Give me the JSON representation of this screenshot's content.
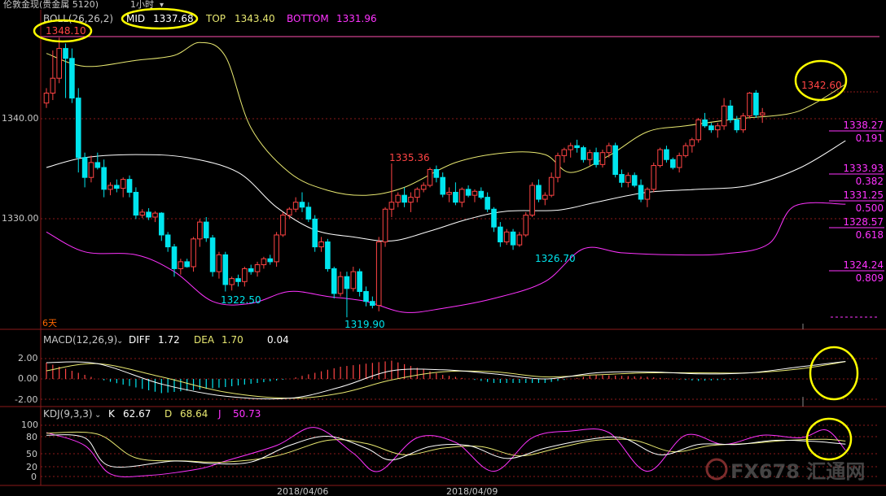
{
  "window": {
    "title": "伦敦金现(贵金属 5120)",
    "period": "1小时"
  },
  "colors": {
    "background": "#000000",
    "up": "#ff4444",
    "down": "#00e5ee",
    "boll_top": "#e8e870",
    "boll_mid": "#ffffff",
    "boll_bottom": "#ff33ff",
    "fib": "#ff33ff",
    "diff": "#ffffff",
    "dea": "#e8e870",
    "k": "#ffffff",
    "d": "#e8e870",
    "j": "#ff33ff",
    "annotation_circle": "#ffff00",
    "grid": "#8b1a1a"
  },
  "indicators": {
    "boll": {
      "label": "BOLL(26,26,2)",
      "mid_label": "MID",
      "mid": "1337.68",
      "top_label": "TOP",
      "top": "1343.40",
      "bottom_label": "BOTTOM",
      "bottom": "1331.96"
    },
    "macd": {
      "label": "MACD(12,26,9)",
      "diff_label": "DIFF",
      "diff": "1.72",
      "dea_label": "DEA",
      "dea": "1.70",
      "macd": "0.04"
    },
    "kdj": {
      "label": "KDJ(9,3,3)",
      "k_label": "K",
      "k": "62.67",
      "d_label": "D",
      "d": "68.64",
      "j_label": "J",
      "j": "50.73"
    }
  },
  "chart_data": {
    "type": "candlestick",
    "price_axis": {
      "ticks": [
        "1340.00",
        "1330.00"
      ],
      "ylim": [
        1318.0,
        1349.0
      ]
    },
    "high_marker": "1348.10",
    "annotations": [
      "1335.36",
      "1322.50",
      "1319.90",
      "1326.70",
      "1342.60"
    ],
    "fib_levels": [
      {
        "price": "1338.27",
        "ratio": "0.191"
      },
      {
        "price": "1333.93",
        "ratio": "0.382"
      },
      {
        "price": "1331.25",
        "ratio": "0.500"
      },
      {
        "price": "1328.57",
        "ratio": "0.618"
      },
      {
        "price": "1324.24",
        "ratio": "0.809"
      }
    ],
    "span_label": "6天",
    "x_labels": [
      "2018/04/06",
      "2018/04/09"
    ],
    "macd_axis": [
      "2.00",
      "0.00",
      "-2.00"
    ],
    "kdj_axis": [
      "100",
      "80",
      "50",
      "20",
      "0"
    ],
    "watermark": "FX678 汇通网",
    "candles": [
      [
        1341.5,
        1343.0,
        1341.0,
        1342.5
      ],
      [
        1342.5,
        1346.8,
        1341.8,
        1344.0
      ],
      [
        1344.0,
        1348.1,
        1343.5,
        1347.0
      ],
      [
        1347.0,
        1347.5,
        1342.0,
        1346.0
      ],
      [
        1346.0,
        1347.0,
        1341.5,
        1342.0
      ],
      [
        1342.0,
        1343.0,
        1334.5,
        1336.0
      ],
      [
        1336.0,
        1336.5,
        1333.0,
        1334.0
      ],
      [
        1334.0,
        1336.2,
        1333.5,
        1335.5
      ],
      [
        1335.5,
        1336.5,
        1334.8,
        1335.0
      ],
      [
        1335.0,
        1335.8,
        1332.0,
        1332.8
      ],
      [
        1332.8,
        1333.5,
        1332.2,
        1333.2
      ],
      [
        1333.2,
        1333.8,
        1332.5,
        1332.9
      ],
      [
        1332.9,
        1334.0,
        1332.0,
        1333.8
      ],
      [
        1333.8,
        1334.2,
        1332.0,
        1332.5
      ],
      [
        1332.5,
        1333.0,
        1329.8,
        1330.2
      ],
      [
        1330.2,
        1330.8,
        1329.9,
        1330.5
      ],
      [
        1330.5,
        1330.9,
        1329.7,
        1330.0
      ],
      [
        1330.0,
        1330.6,
        1329.5,
        1330.4
      ],
      [
        1330.4,
        1330.5,
        1327.6,
        1328.2
      ],
      [
        1328.2,
        1328.5,
        1326.5,
        1327.0
      ],
      [
        1327.0,
        1327.3,
        1324.0,
        1324.8
      ],
      [
        1324.8,
        1325.8,
        1324.2,
        1325.5
      ],
      [
        1325.5,
        1325.8,
        1324.9,
        1325.0
      ],
      [
        1325.0,
        1328.0,
        1324.5,
        1327.8
      ],
      [
        1327.8,
        1329.8,
        1327.0,
        1329.5
      ],
      [
        1329.5,
        1330.0,
        1327.5,
        1327.9
      ],
      [
        1327.9,
        1328.2,
        1324.0,
        1324.5
      ],
      [
        1324.5,
        1326.5,
        1323.8,
        1326.2
      ],
      [
        1326.2,
        1326.5,
        1322.5,
        1323.2
      ],
      [
        1323.2,
        1324.0,
        1322.6,
        1323.8
      ],
      [
        1323.8,
        1324.2,
        1323.0,
        1323.5
      ],
      [
        1323.5,
        1325.0,
        1323.0,
        1324.8
      ],
      [
        1324.8,
        1325.2,
        1324.2,
        1324.5
      ],
      [
        1324.5,
        1325.5,
        1324.0,
        1325.2
      ],
      [
        1325.2,
        1326.0,
        1324.8,
        1325.8
      ],
      [
        1325.8,
        1326.2,
        1325.2,
        1325.5
      ],
      [
        1325.5,
        1328.5,
        1325.0,
        1328.2
      ],
      [
        1328.2,
        1330.5,
        1328.0,
        1330.2
      ],
      [
        1330.2,
        1331.0,
        1329.8,
        1330.8
      ],
      [
        1330.8,
        1332.0,
        1330.5,
        1331.5
      ],
      [
        1331.5,
        1332.5,
        1330.5,
        1331.0
      ],
      [
        1331.0,
        1331.5,
        1329.5,
        1329.8
      ],
      [
        1329.8,
        1330.2,
        1326.5,
        1327.0
      ],
      [
        1327.0,
        1328.0,
        1326.5,
        1327.5
      ],
      [
        1327.5,
        1327.8,
        1324.5,
        1324.8
      ],
      [
        1324.8,
        1325.0,
        1321.8,
        1322.3
      ],
      [
        1322.3,
        1324.5,
        1322.0,
        1324.0
      ],
      [
        1324.0,
        1324.5,
        1319.9,
        1322.8
      ],
      [
        1322.8,
        1325.0,
        1322.5,
        1324.5
      ],
      [
        1324.5,
        1324.8,
        1322.0,
        1322.5
      ],
      [
        1322.5,
        1323.0,
        1321.0,
        1321.5
      ],
      [
        1321.5,
        1322.0,
        1320.8,
        1321.1
      ],
      [
        1321.1,
        1328.0,
        1320.5,
        1327.5
      ],
      [
        1327.5,
        1331.0,
        1327.0,
        1330.8
      ],
      [
        1330.8,
        1335.4,
        1330.0,
        1331.5
      ],
      [
        1331.5,
        1332.5,
        1331.0,
        1332.2
      ],
      [
        1332.2,
        1333.0,
        1331.0,
        1331.5
      ],
      [
        1331.5,
        1332.5,
        1330.5,
        1332.0
      ],
      [
        1332.0,
        1333.0,
        1331.5,
        1332.8
      ],
      [
        1332.8,
        1333.5,
        1332.5,
        1333.2
      ],
      [
        1333.2,
        1335.0,
        1333.0,
        1334.8
      ],
      [
        1334.8,
        1335.2,
        1333.5,
        1334.0
      ],
      [
        1334.0,
        1334.5,
        1332.0,
        1332.3
      ],
      [
        1332.3,
        1333.0,
        1331.5,
        1332.5
      ],
      [
        1332.5,
        1333.5,
        1331.2,
        1331.5
      ],
      [
        1331.5,
        1333.0,
        1331.0,
        1332.8
      ],
      [
        1332.8,
        1333.2,
        1332.0,
        1332.2
      ],
      [
        1332.2,
        1332.8,
        1331.5,
        1332.6
      ],
      [
        1332.6,
        1333.0,
        1331.8,
        1332.0
      ],
      [
        1332.0,
        1332.5,
        1330.5,
        1330.8
      ],
      [
        1330.8,
        1331.0,
        1328.5,
        1329.0
      ],
      [
        1329.0,
        1329.5,
        1327.0,
        1327.5
      ],
      [
        1327.5,
        1328.8,
        1327.2,
        1328.5
      ],
      [
        1328.5,
        1328.8,
        1326.7,
        1327.2
      ],
      [
        1327.2,
        1328.5,
        1327.0,
        1328.2
      ],
      [
        1328.2,
        1330.5,
        1328.0,
        1330.2
      ],
      [
        1330.2,
        1333.5,
        1330.0,
        1333.2
      ],
      [
        1333.2,
        1333.8,
        1331.5,
        1331.8
      ],
      [
        1331.8,
        1332.5,
        1331.2,
        1332.2
      ],
      [
        1332.2,
        1334.5,
        1332.0,
        1334.0
      ],
      [
        1334.0,
        1336.5,
        1333.5,
        1336.2
      ],
      [
        1336.2,
        1337.0,
        1335.5,
        1336.8
      ],
      [
        1336.8,
        1337.5,
        1336.0,
        1337.2
      ],
      [
        1337.2,
        1337.8,
        1336.5,
        1337.0
      ],
      [
        1337.0,
        1337.2,
        1335.5,
        1335.8
      ],
      [
        1335.8,
        1336.8,
        1335.2,
        1336.5
      ],
      [
        1336.5,
        1337.0,
        1335.0,
        1335.3
      ],
      [
        1335.3,
        1336.8,
        1335.0,
        1336.5
      ],
      [
        1336.5,
        1337.5,
        1336.0,
        1337.2
      ],
      [
        1337.2,
        1337.5,
        1334.0,
        1334.3
      ],
      [
        1334.3,
        1334.8,
        1333.0,
        1333.5
      ],
      [
        1333.5,
        1334.5,
        1333.0,
        1334.2
      ],
      [
        1334.2,
        1334.5,
        1333.0,
        1333.2
      ],
      [
        1333.2,
        1333.8,
        1331.5,
        1331.8
      ],
      [
        1331.8,
        1333.0,
        1331.0,
        1332.8
      ],
      [
        1332.8,
        1335.5,
        1332.5,
        1335.2
      ],
      [
        1335.2,
        1337.0,
        1335.0,
        1336.8
      ],
      [
        1336.8,
        1337.2,
        1335.5,
        1335.8
      ],
      [
        1335.8,
        1336.0,
        1334.8,
        1335.0
      ],
      [
        1335.0,
        1336.5,
        1334.5,
        1336.2
      ],
      [
        1336.2,
        1337.5,
        1336.0,
        1337.2
      ],
      [
        1337.2,
        1338.0,
        1336.5,
        1337.8
      ],
      [
        1337.8,
        1340.0,
        1337.5,
        1339.8
      ],
      [
        1339.8,
        1340.5,
        1339.0,
        1339.2
      ],
      [
        1339.2,
        1339.5,
        1338.5,
        1338.8
      ],
      [
        1338.8,
        1339.5,
        1338.0,
        1339.2
      ],
      [
        1339.2,
        1342.0,
        1338.8,
        1341.2
      ],
      [
        1341.2,
        1341.8,
        1339.5,
        1339.8
      ],
      [
        1339.8,
        1340.2,
        1338.5,
        1338.8
      ],
      [
        1338.8,
        1340.5,
        1338.5,
        1340.2
      ],
      [
        1340.2,
        1342.6,
        1340.0,
        1342.5
      ],
      [
        1342.5,
        1342.8,
        1340.0,
        1340.3
      ],
      [
        1340.3,
        1341.0,
        1339.5,
        1340.5
      ]
    ],
    "boll_series": {
      "upper": [
        [
          0,
          1346.5
        ],
        [
          6,
          1345.2
        ],
        [
          14,
          1345.8
        ],
        [
          20,
          1346.3
        ],
        [
          24,
          1347.6
        ],
        [
          28,
          1346.2
        ],
        [
          32,
          1339.0
        ],
        [
          38,
          1334.5
        ],
        [
          44,
          1332.7
        ],
        [
          50,
          1332.2
        ],
        [
          56,
          1333.0
        ],
        [
          64,
          1335.5
        ],
        [
          72,
          1336.5
        ],
        [
          78,
          1336.3
        ],
        [
          82,
          1334.5
        ],
        [
          88,
          1336.2
        ],
        [
          94,
          1338.6
        ],
        [
          100,
          1339.2
        ],
        [
          108,
          1339.9
        ],
        [
          116,
          1340.4
        ],
        [
          120,
          1341.4
        ],
        [
          125,
          1343.4
        ]
      ],
      "mid": [
        [
          0,
          1335.0
        ],
        [
          6,
          1336.0
        ],
        [
          14,
          1336.3
        ],
        [
          22,
          1336.0
        ],
        [
          30,
          1334.5
        ],
        [
          36,
          1331.0
        ],
        [
          42,
          1328.7
        ],
        [
          48,
          1328.0
        ],
        [
          54,
          1327.6
        ],
        [
          60,
          1328.6
        ],
        [
          66,
          1329.8
        ],
        [
          72,
          1330.6
        ],
        [
          80,
          1330.7
        ],
        [
          86,
          1331.5
        ],
        [
          94,
          1332.5
        ],
        [
          102,
          1332.8
        ],
        [
          110,
          1333.2
        ],
        [
          118,
          1335.0
        ],
        [
          125,
          1337.7
        ]
      ],
      "lower": [
        [
          0,
          1328.5
        ],
        [
          6,
          1326.5
        ],
        [
          14,
          1326.2
        ],
        [
          20,
          1324.5
        ],
        [
          26,
          1321.5
        ],
        [
          32,
          1321.3
        ],
        [
          38,
          1322.5
        ],
        [
          44,
          1322.0
        ],
        [
          50,
          1321.5
        ],
        [
          56,
          1320.4
        ],
        [
          62,
          1320.8
        ],
        [
          70,
          1321.8
        ],
        [
          78,
          1323.5
        ],
        [
          84,
          1326.8
        ],
        [
          90,
          1326.4
        ],
        [
          98,
          1326.2
        ],
        [
          106,
          1326.3
        ],
        [
          113,
          1327.3
        ],
        [
          117,
          1331.1
        ],
        [
          125,
          1331.3
        ]
      ]
    },
    "macd_series": {
      "diff": [
        [
          0,
          1.6
        ],
        [
          8,
          1.5
        ],
        [
          18,
          -0.5
        ],
        [
          28,
          -1.7
        ],
        [
          38,
          -1.9
        ],
        [
          46,
          -0.8
        ],
        [
          54,
          0.8
        ],
        [
          62,
          0.9
        ],
        [
          70,
          0.5
        ],
        [
          78,
          0.0
        ],
        [
          86,
          0.6
        ],
        [
          94,
          0.7
        ],
        [
          102,
          0.5
        ],
        [
          110,
          0.6
        ],
        [
          118,
          1.2
        ],
        [
          125,
          1.72
        ]
      ],
      "dea": [
        [
          0,
          0.8
        ],
        [
          8,
          1.5
        ],
        [
          18,
          0.2
        ],
        [
          28,
          -1.3
        ],
        [
          38,
          -1.9
        ],
        [
          46,
          -1.4
        ],
        [
          54,
          -0.1
        ],
        [
          62,
          0.7
        ],
        [
          70,
          0.7
        ],
        [
          78,
          0.2
        ],
        [
          86,
          0.4
        ],
        [
          94,
          0.6
        ],
        [
          102,
          0.6
        ],
        [
          110,
          0.6
        ],
        [
          118,
          1.0
        ],
        [
          125,
          1.7
        ]
      ]
    },
    "kdj_series": {
      "k": [
        [
          0,
          80
        ],
        [
          6,
          75
        ],
        [
          10,
          20
        ],
        [
          20,
          30
        ],
        [
          26,
          25
        ],
        [
          32,
          28
        ],
        [
          38,
          60
        ],
        [
          44,
          78
        ],
        [
          50,
          55
        ],
        [
          54,
          32
        ],
        [
          60,
          58
        ],
        [
          66,
          60
        ],
        [
          72,
          35
        ],
        [
          78,
          55
        ],
        [
          84,
          70
        ],
        [
          90,
          75
        ],
        [
          96,
          42
        ],
        [
          102,
          62
        ],
        [
          108,
          62
        ],
        [
          114,
          70
        ],
        [
          120,
          68
        ],
        [
          125,
          62.67
        ]
      ],
      "d": [
        [
          0,
          84
        ],
        [
          8,
          82
        ],
        [
          14,
          36
        ],
        [
          22,
          30
        ],
        [
          28,
          28
        ],
        [
          36,
          40
        ],
        [
          44,
          70
        ],
        [
          50,
          64
        ],
        [
          56,
          42
        ],
        [
          62,
          55
        ],
        [
          68,
          58
        ],
        [
          74,
          40
        ],
        [
          80,
          55
        ],
        [
          86,
          70
        ],
        [
          92,
          70
        ],
        [
          98,
          48
        ],
        [
          104,
          60
        ],
        [
          110,
          64
        ],
        [
          116,
          70
        ],
        [
          122,
          72
        ],
        [
          125,
          68.64
        ]
      ],
      "j": [
        [
          0,
          85
        ],
        [
          6,
          60
        ],
        [
          10,
          5
        ],
        [
          16,
          2
        ],
        [
          24,
          15
        ],
        [
          28,
          30
        ],
        [
          36,
          60
        ],
        [
          42,
          95
        ],
        [
          48,
          45
        ],
        [
          52,
          10
        ],
        [
          58,
          75
        ],
        [
          64,
          66
        ],
        [
          70,
          10
        ],
        [
          76,
          75
        ],
        [
          82,
          88
        ],
        [
          88,
          85
        ],
        [
          94,
          10
        ],
        [
          100,
          80
        ],
        [
          106,
          62
        ],
        [
          112,
          80
        ],
        [
          118,
          75
        ],
        [
          122,
          90
        ],
        [
          125,
          50.73
        ]
      ]
    }
  }
}
